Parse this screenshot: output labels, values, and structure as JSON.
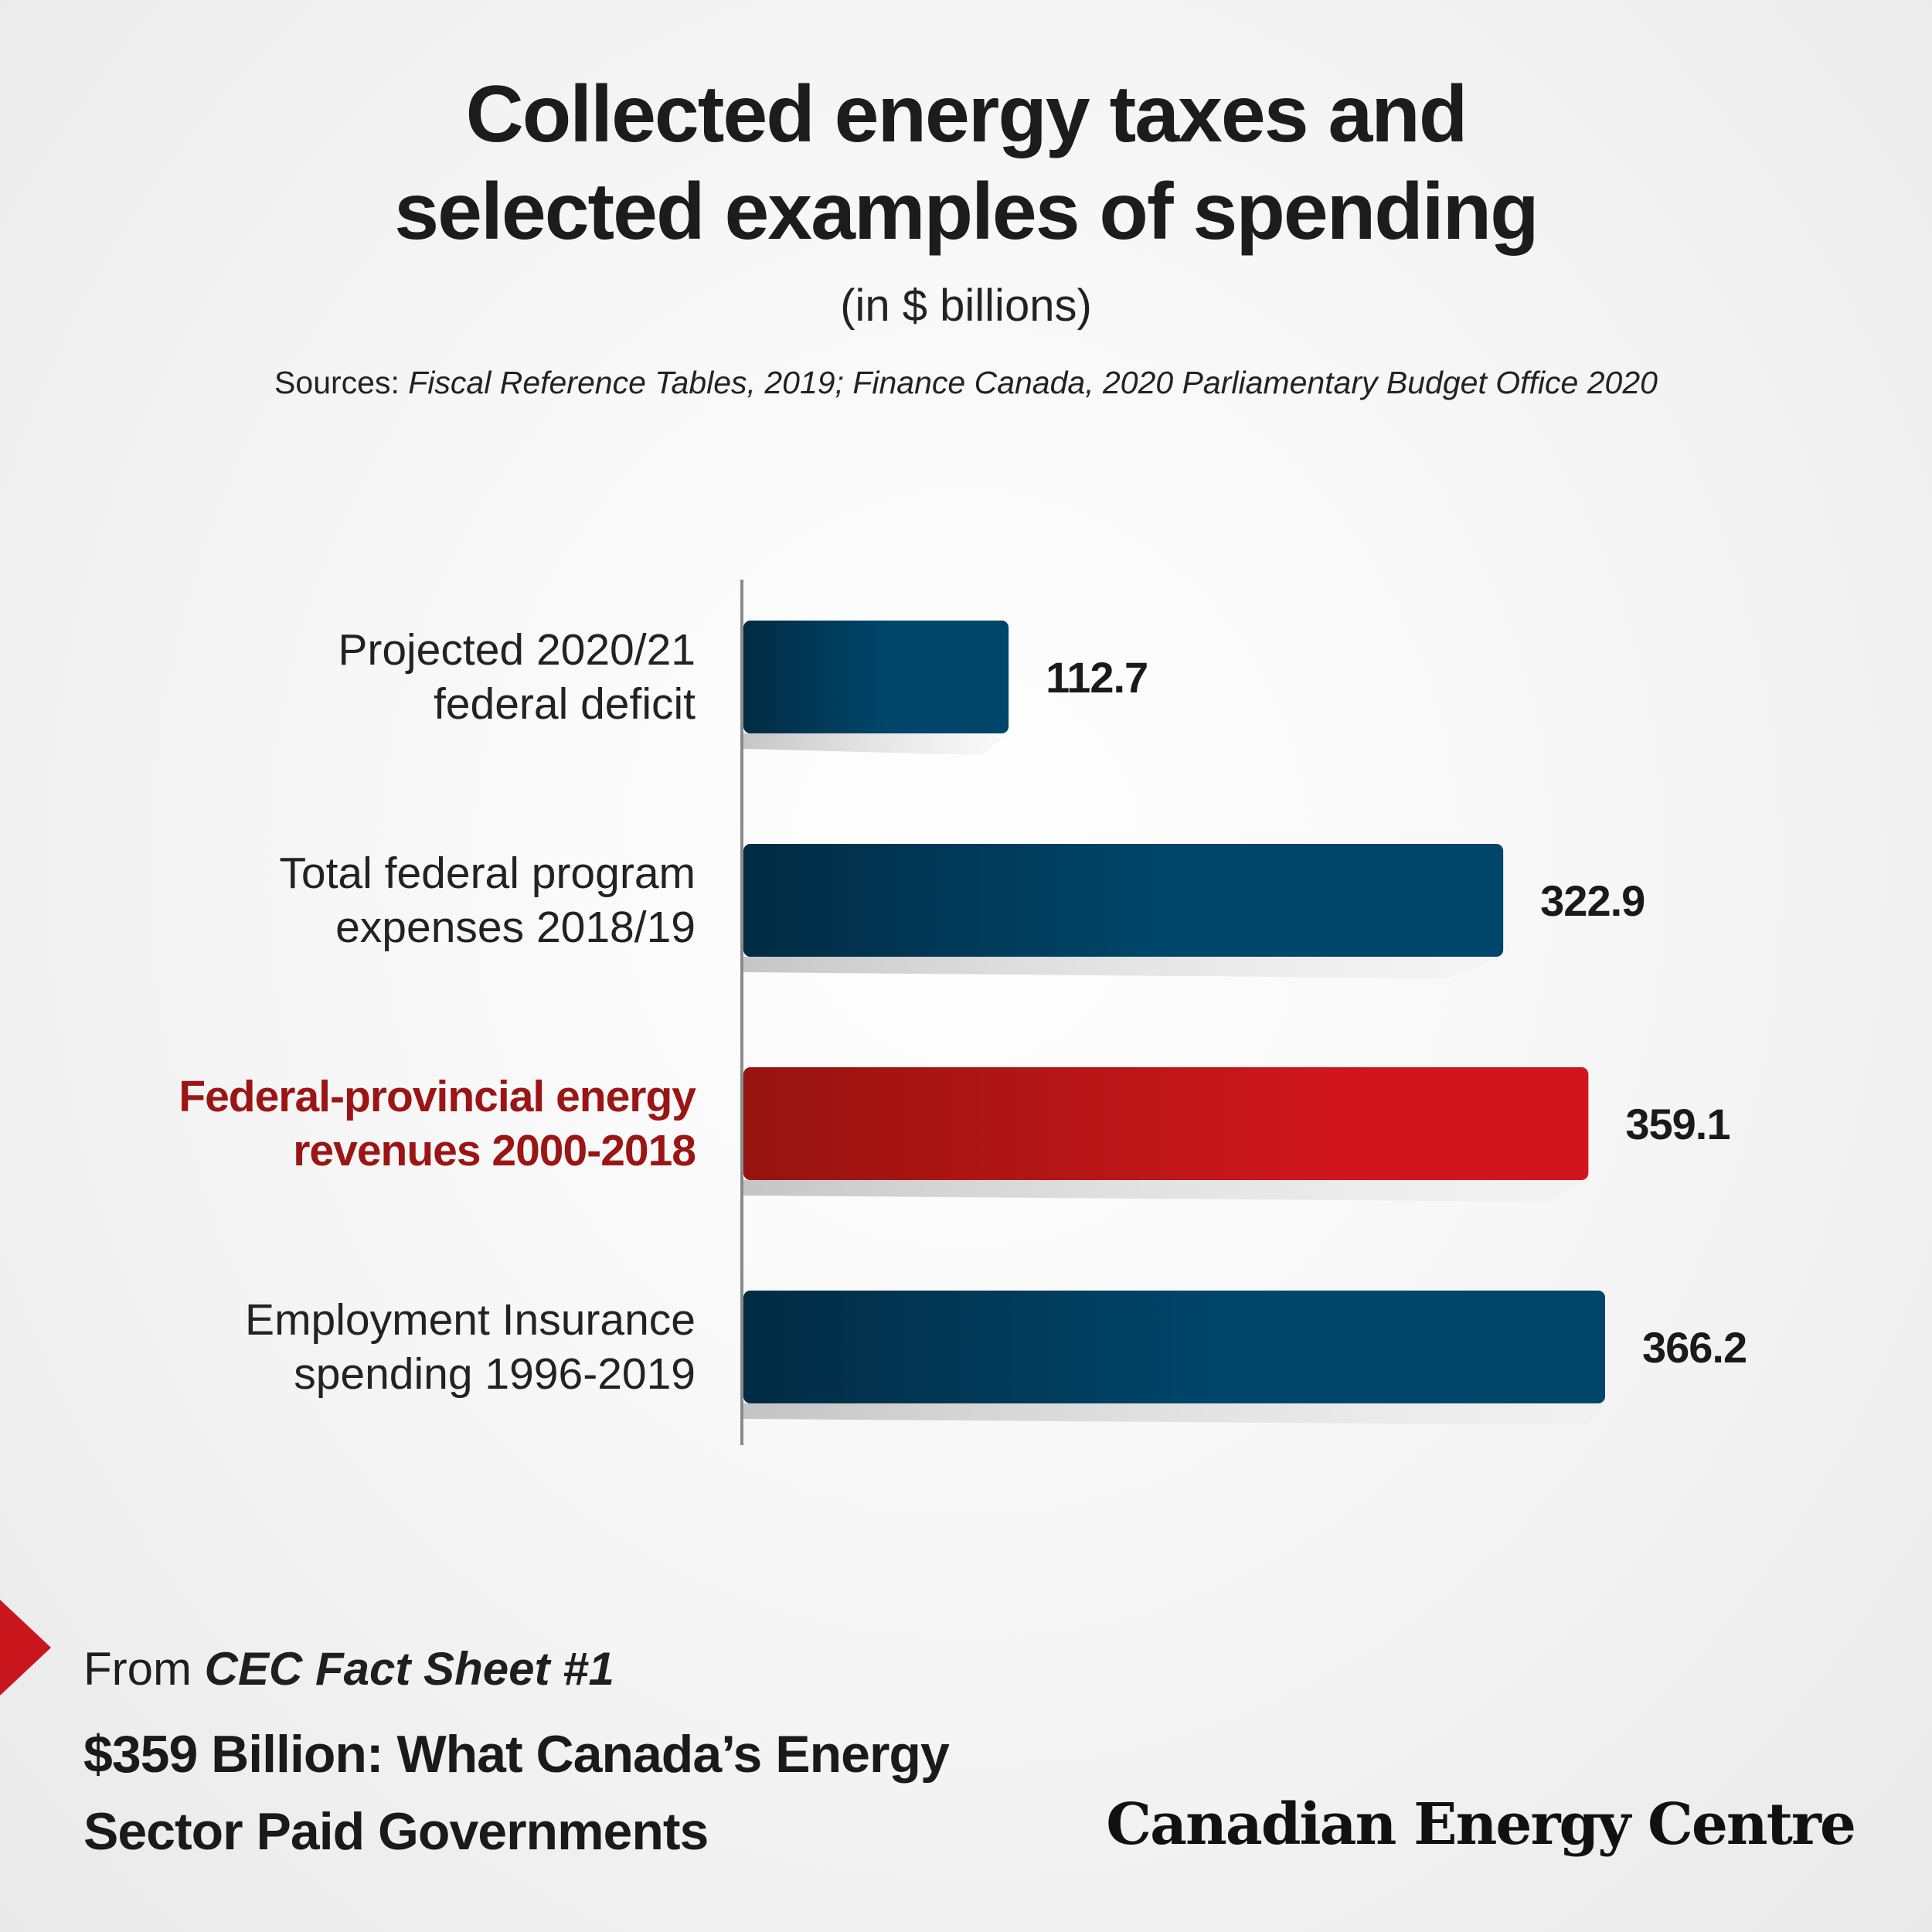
{
  "header": {
    "title_line1": "Collected energy taxes and",
    "title_line2": "selected examples of spending",
    "subtitle": "(in $ billions)",
    "sources_prefix": "Sources: ",
    "sources_list": "Fiscal Reference Tables, 2019; Finance Canada, 2020 Parliamentary Budget Office 2020"
  },
  "chart_data": {
    "type": "bar",
    "orientation": "horizontal",
    "title": "Collected energy taxes and selected examples of spending",
    "subtitle": "(in $ billions)",
    "categories": [
      [
        "Projected 2020/21",
        "federal deficit"
      ],
      [
        "Total federal program",
        "expenses 2018/19"
      ],
      [
        "Federal-provincial energy",
        "revenues 2000-2018"
      ],
      [
        "Employment Insurance",
        "spending 1996-2019"
      ]
    ],
    "values": [
      112.7,
      322.9,
      359.1,
      366.2
    ],
    "value_labels": [
      "112.7",
      "322.9",
      "359.1",
      "366.2"
    ],
    "highlight_index": 2,
    "colors": {
      "default": "#00466a",
      "default_dark": "#022b44",
      "highlight": "#d0161c",
      "highlight_dark": "#961410"
    },
    "xlim": [
      0,
      366.2
    ],
    "grid": false
  },
  "footer": {
    "from_prefix": "From ",
    "fact_sheet": "CEC Fact Sheet  #1",
    "headline_line1": "$359 Billion: What Canada’s Energy",
    "headline_line2": "Sector Paid Governments",
    "brand": "Canadian Energy Centre",
    "arrow_icon": "red-triangle-arrow-icon"
  }
}
